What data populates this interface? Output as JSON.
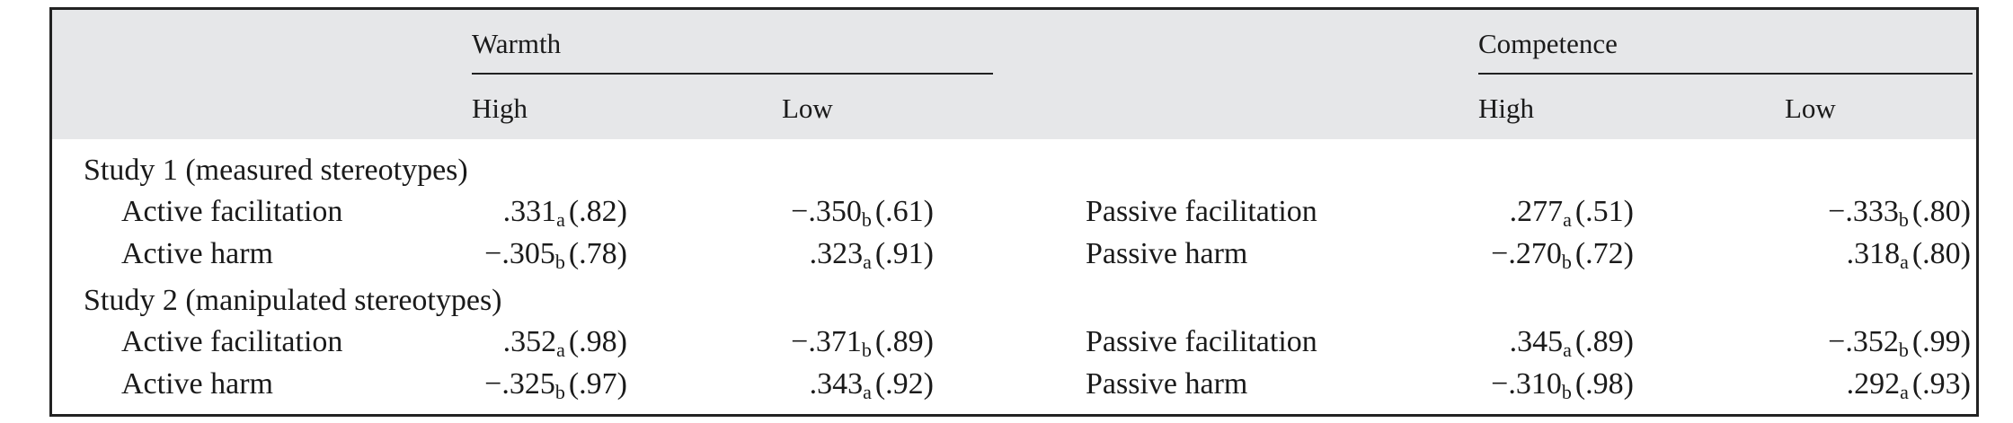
{
  "header": {
    "group1": "Warmth",
    "group2": "Competence",
    "w_high": "High",
    "w_low": "Low",
    "c_high": "High",
    "c_low": "Low"
  },
  "studies": [
    {
      "title": "Study 1 (measured stereotypes)",
      "rows": [
        {
          "warmth_label": "Active facilitation",
          "w_high": {
            "val": ".331",
            "sub": "a",
            "paren": "(.82)"
          },
          "w_low": {
            "val": "−.350",
            "sub": "b",
            "paren": "(.61)"
          },
          "comp_label": "Passive facilitation",
          "c_high": {
            "val": ".277",
            "sub": "a",
            "paren": "(.51)"
          },
          "c_low": {
            "val": "−.333",
            "sub": "b",
            "paren": "(.80)"
          }
        },
        {
          "warmth_label": "Active harm",
          "w_high": {
            "val": "−.305",
            "sub": "b",
            "paren": "(.78)"
          },
          "w_low": {
            "val": ".323",
            "sub": "a",
            "paren": "(.91)"
          },
          "comp_label": "Passive harm",
          "c_high": {
            "val": "−.270",
            "sub": "b",
            "paren": "(.72)"
          },
          "c_low": {
            "val": ".318",
            "sub": "a",
            "paren": "(.80)"
          }
        }
      ]
    },
    {
      "title": "Study 2 (manipulated stereotypes)",
      "rows": [
        {
          "warmth_label": "Active facilitation",
          "w_high": {
            "val": ".352",
            "sub": "a",
            "paren": "(.98)"
          },
          "w_low": {
            "val": "−.371",
            "sub": "b",
            "paren": "(.89)"
          },
          "comp_label": "Passive facilitation",
          "c_high": {
            "val": ".345",
            "sub": "a",
            "paren": "(.89)"
          },
          "c_low": {
            "val": "−.352",
            "sub": "b",
            "paren": "(.99)"
          }
        },
        {
          "warmth_label": "Active harm",
          "w_high": {
            "val": "−.325",
            "sub": "b",
            "paren": "(.97)"
          },
          "w_low": {
            "val": ".343",
            "sub": "a",
            "paren": "(.92)"
          },
          "comp_label": "Passive harm",
          "c_high": {
            "val": "−.310",
            "sub": "b",
            "paren": "(.98)"
          },
          "c_low": {
            "val": ".292",
            "sub": "a",
            "paren": "(.93)"
          }
        }
      ]
    }
  ]
}
